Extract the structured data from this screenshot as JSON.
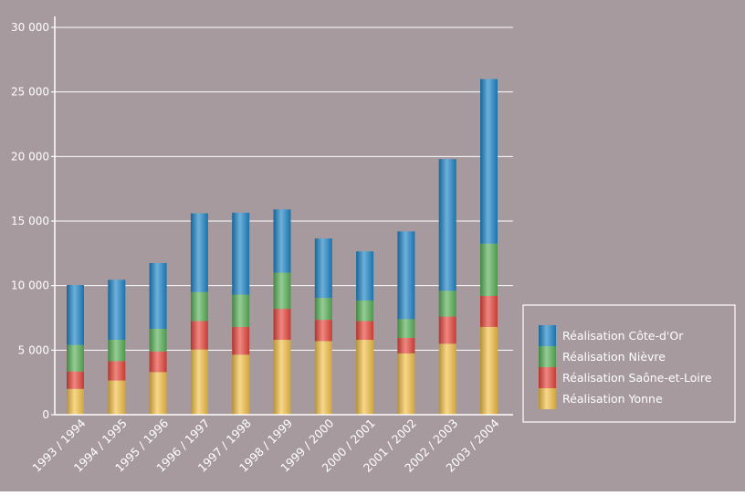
{
  "colors": {
    "background": "#a69a9f",
    "axis": "#ffffff",
    "yonne": "#f4c24a",
    "saone": "#e8463c",
    "nievre": "#5bb25a",
    "cote": "#1f86c8"
  },
  "chart_data": {
    "type": "bar",
    "stacked": true,
    "categories": [
      "1993 / 1994",
      "1994 / 1995",
      "1995 / 1996",
      "1996 / 1997",
      "1997 / 1998",
      "1998 / 1999",
      "1999 / 2000",
      "2000 / 2001",
      "2001 / 2002",
      "2002 / 2003",
      "2003 / 2004"
    ],
    "series": [
      {
        "name": "Réalisation Yonne",
        "color": "yonne",
        "values": [
          2000,
          2650,
          3300,
          5050,
          4650,
          5800,
          5700,
          5800,
          4750,
          5500,
          6800
        ]
      },
      {
        "name": "Réalisation Saône-et-Loire",
        "color": "saone",
        "values": [
          1350,
          1500,
          1600,
          2200,
          2150,
          2400,
          1650,
          1450,
          1200,
          2100,
          2400
        ]
      },
      {
        "name": "Réalisation Nièvre",
        "color": "nievre",
        "values": [
          2050,
          1650,
          1750,
          2250,
          2500,
          2800,
          1700,
          1600,
          1450,
          2000,
          4050
        ]
      },
      {
        "name": "Réalisation Côte-d'Or",
        "color": "cote",
        "values": [
          4650,
          4650,
          5100,
          6100,
          6350,
          4900,
          4600,
          3800,
          6800,
          10200,
          12750
        ]
      }
    ],
    "ylim": [
      0,
      30000
    ],
    "yticks": [
      0,
      5000,
      10000,
      15000,
      20000,
      25000,
      30000
    ],
    "ytick_labels": [
      "0",
      "5 000",
      "10 000",
      "15 000",
      "20 000",
      "25 000",
      "30 000"
    ],
    "grid": true,
    "legend_position": "right",
    "legend_order": [
      "Réalisation Côte-d'Or",
      "Réalisation Nièvre",
      "Réalisation Saône-et-Loire",
      "Réalisation Yonne"
    ]
  }
}
